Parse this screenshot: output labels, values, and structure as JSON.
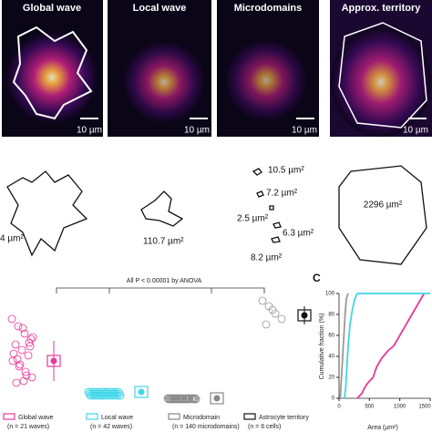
{
  "panels": [
    {
      "title": "Global wave",
      "scale_bar": "10 µm",
      "outline_label": "4 µm²"
    },
    {
      "title": "Local wave",
      "scale_bar": "10 µm",
      "outline_label": "110.7 µm²"
    },
    {
      "title": "Microdomains",
      "scale_bar": "10 µm",
      "outline_labels": [
        "10.5 µm²",
        "7.2 µm²",
        "2.5 µm²",
        "6.3 µm²",
        "8.2 µm²"
      ]
    },
    {
      "title": "Approx. territory",
      "scale_bar": "10 µm",
      "outline_label": "2296 µm²"
    }
  ],
  "panel_b": {
    "annotation": "All P < 0.00001 by ANOVA",
    "legend": [
      {
        "name": "Global wave",
        "n": "(n = 21 waves)"
      },
      {
        "name": "Local wave",
        "n": "(n = 42 waves)"
      },
      {
        "name": "Microdomain",
        "n": "(n = 140 microdomains)"
      },
      {
        "name": "Astrocyte territory",
        "n": "(n = 6 cells)"
      }
    ]
  },
  "chart_data": {
    "type": "line",
    "panel_label": "C",
    "ylabel": "Cumulative fraction (%)",
    "xlabel": "Area (µm²)",
    "xlim": [
      0,
      1500
    ],
    "ylim": [
      0,
      100
    ],
    "xticks": [
      0,
      500,
      1000,
      1500
    ],
    "yticks": [
      0,
      20,
      40,
      60,
      80,
      100
    ],
    "series": [
      {
        "color": "#e8399a",
        "x": [
          300,
          380,
          420,
          480,
          560,
          620,
          700,
          800,
          900,
          1000,
          1100,
          1200,
          1300,
          1400
        ],
        "values": [
          0,
          5,
          10,
          15,
          20,
          30,
          38,
          45,
          50,
          60,
          70,
          80,
          90,
          100
        ]
      },
      {
        "color": "#3fd6e8",
        "x": [
          90,
          110,
          130,
          150,
          180,
          220,
          260,
          300,
          1500
        ],
        "values": [
          0,
          10,
          30,
          50,
          70,
          85,
          95,
          100,
          100
        ]
      },
      {
        "color": "#999999",
        "x": [
          20,
          40,
          60,
          80,
          100,
          120,
          150
        ],
        "values": [
          0,
          20,
          40,
          60,
          80,
          95,
          100
        ]
      }
    ]
  }
}
